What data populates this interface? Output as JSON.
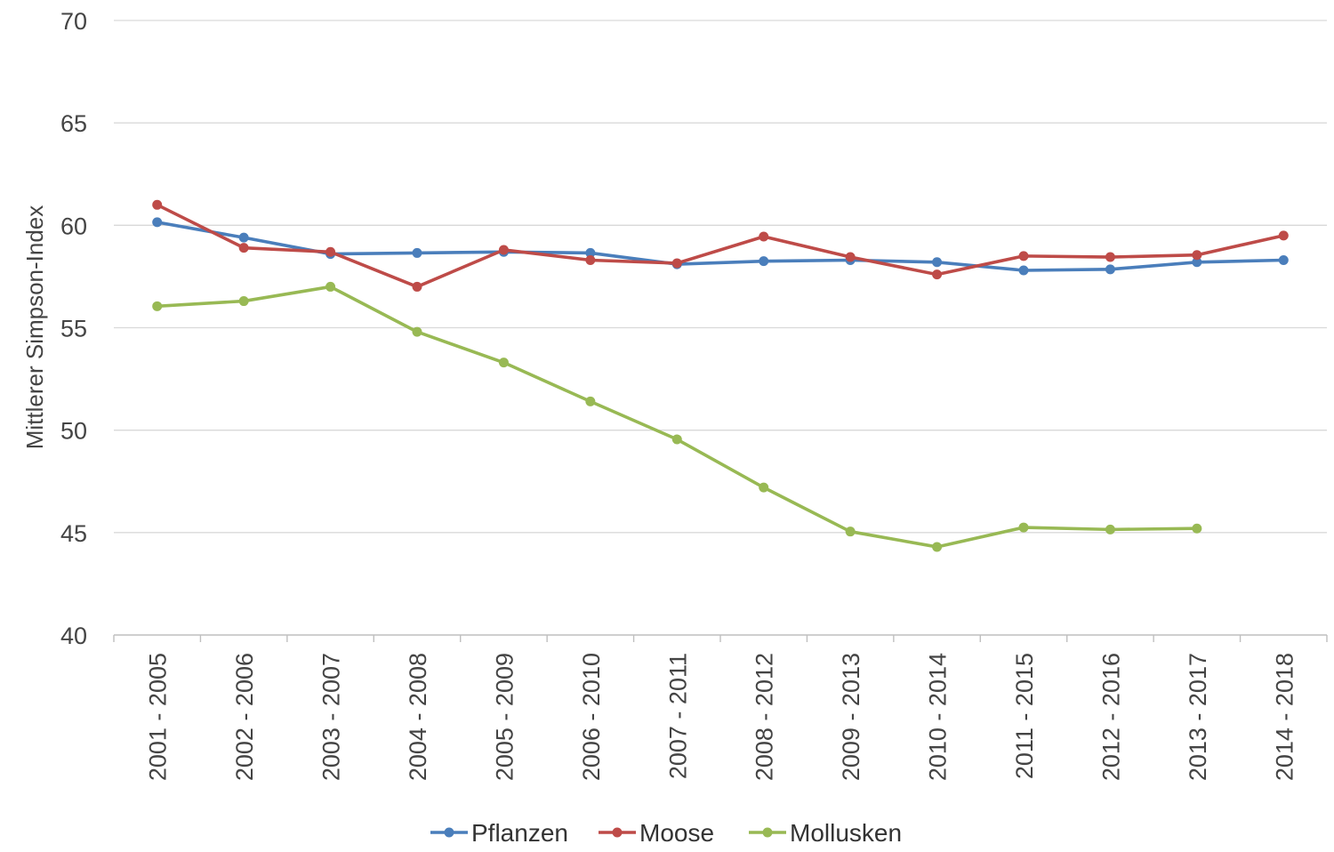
{
  "chart_data": {
    "type": "line",
    "title": "",
    "xlabel": "",
    "ylabel": "Mittlerer Simpson-Index",
    "ylim": [
      40,
      70
    ],
    "yticks": [
      40,
      45,
      50,
      55,
      60,
      65,
      70
    ],
    "grid": true,
    "legend_position": "bottom",
    "categories": [
      "2001 - 2005",
      "2002 - 2006",
      "2003 - 2007",
      "2004 - 2008",
      "2005 - 2009",
      "2006 - 2010",
      "2007 - 2011",
      "2008 - 2012",
      "2009 - 2013",
      "2010 - 2014",
      "2011 - 2015",
      "2012 - 2016",
      "2013 - 2017",
      "2014 - 2018"
    ],
    "series": [
      {
        "name": "Pflanzen",
        "color": "#4a7ebb",
        "values": [
          60.15,
          59.4,
          58.6,
          58.65,
          58.7,
          58.65,
          58.1,
          58.25,
          58.3,
          58.2,
          57.8,
          57.85,
          58.2,
          58.3
        ]
      },
      {
        "name": "Moose",
        "color": "#be4b48",
        "values": [
          61.0,
          58.9,
          58.7,
          57.0,
          58.8,
          58.3,
          58.15,
          59.45,
          58.45,
          57.6,
          58.5,
          58.45,
          58.55,
          59.5
        ]
      },
      {
        "name": "Mollusken",
        "color": "#98b954",
        "values": [
          56.05,
          56.3,
          57.0,
          54.8,
          53.3,
          51.4,
          49.55,
          47.2,
          45.05,
          44.3,
          45.25,
          45.15,
          45.2,
          null
        ]
      }
    ]
  }
}
